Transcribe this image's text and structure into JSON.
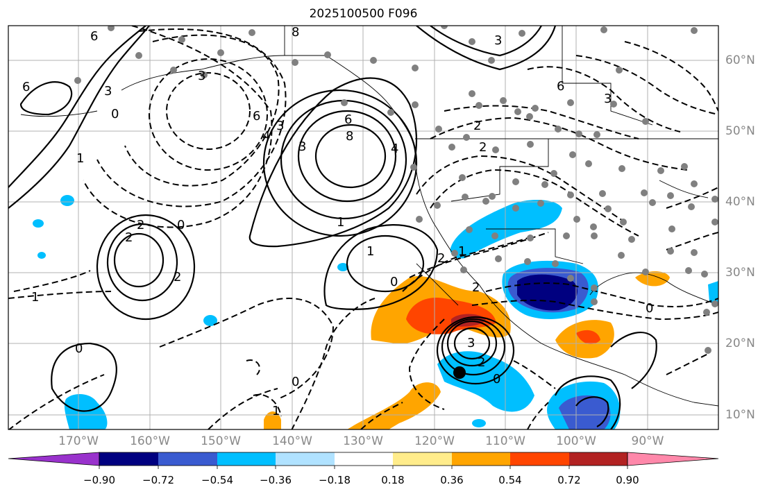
{
  "title": "2025100500 F096",
  "lat_labels": [
    "60°N",
    "50°N",
    "40°N",
    "30°N",
    "20°N",
    "10°N"
  ],
  "lon_labels": [
    "170°W",
    "160°W",
    "150°W",
    "140°W",
    "130°W",
    "120°W",
    "110°W",
    "100°W",
    "90°W"
  ],
  "colorbar": {
    "ticks": [
      "−0.90",
      "−0.72",
      "−0.54",
      "−0.36",
      "−0.18",
      "0.18",
      "0.36",
      "0.54",
      "0.72",
      "0.90"
    ],
    "colors": [
      "#9932cc",
      "#000080",
      "#3a5bd0",
      "#00bfff",
      "#b0e2ff",
      "#ffffff",
      "#ffec8b",
      "#ffa500",
      "#ff4500",
      "#b22222",
      "#ff88aa"
    ]
  },
  "contour_labels": [
    "6",
    "6",
    "3",
    "0",
    "1",
    "6",
    "3",
    "4",
    "6",
    "8",
    "4",
    "3",
    "3",
    "2",
    "2",
    "0",
    "2",
    "1",
    "1",
    "2",
    "1",
    "0",
    "1",
    "0",
    "0",
    "3",
    "2",
    "2",
    "0",
    "8",
    "1",
    "3",
    "2",
    "0",
    "6",
    "3",
    "2"
  ]
}
